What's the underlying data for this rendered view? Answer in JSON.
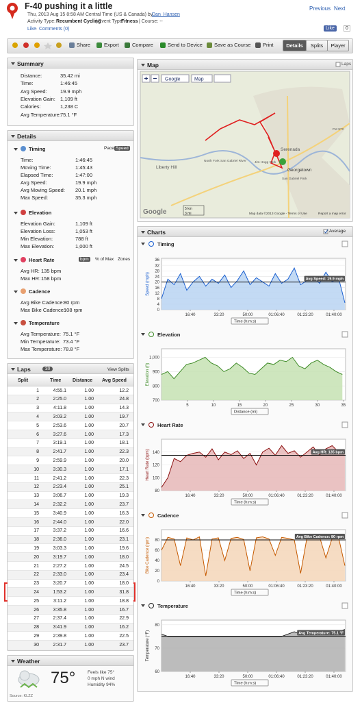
{
  "header": {
    "title": "F-40 pushing it a little",
    "datetime": "Thu, 2013 Aug 15 8:58 AM Central Time (US & Canada) by",
    "user": "Dan_Hansen",
    "activity_type_label": "Activity Type:",
    "activity_type": "Recumbent Cycling",
    "event_type_label": "| Event Type:",
    "event_type": "Fitness",
    "course": "| Course: --",
    "like": "Like",
    "sep": "·",
    "comments": "Comments (0)",
    "previous": "Previous",
    "next": "Next",
    "fb_like": "Like",
    "fb_count": "0"
  },
  "toolbar": {
    "actions": [
      "Share",
      "Export",
      "Compare",
      "Send to Device",
      "Save as Course",
      "Print"
    ],
    "tabs": [
      "Details",
      "Splits",
      "Player"
    ]
  },
  "summary": {
    "title": "Summary",
    "rows": [
      [
        "Distance:",
        "35.42 mi"
      ],
      [
        "Time:",
        "1:46:45"
      ],
      [
        "Avg Speed:",
        "19.9 mph"
      ],
      [
        "Elevation Gain:",
        "1,109 ft"
      ],
      [
        "Calories:",
        "1,238 C"
      ],
      [
        "Avg Temperature:",
        "75.1 °F"
      ]
    ]
  },
  "details": {
    "title": "Details",
    "sections": [
      {
        "title": "Timing",
        "toggles": [
          "Pace",
          "Speed"
        ],
        "rows": [
          [
            "Time:",
            "1:46:45"
          ],
          [
            "Moving Time:",
            "1:45:43"
          ],
          [
            "Elapsed Time:",
            "1:47:00"
          ],
          [
            "Avg Speed:",
            "19.9 mph"
          ],
          [
            "Avg Moving Speed:",
            "20.1 mph"
          ],
          [
            "Max Speed:",
            "35.3 mph"
          ]
        ]
      },
      {
        "title": "Elevation",
        "toggles": [],
        "rows": [
          [
            "Elevation Gain:",
            "1,109 ft"
          ],
          [
            "Elevation Loss:",
            "1,053 ft"
          ],
          [
            "Min Elevation:",
            "788 ft"
          ],
          [
            "Max Elevation:",
            "1,000 ft"
          ]
        ]
      },
      {
        "title": "Heart Rate",
        "toggles": [
          "bpm",
          "% of Max",
          "Zones"
        ],
        "rows": [
          [
            "Avg HR:",
            "135 bpm"
          ],
          [
            "Max HR:",
            "158 bpm"
          ]
        ]
      },
      {
        "title": "Cadence",
        "toggles": [],
        "rows": [
          [
            "Avg Bike Cadence:",
            "80 rpm"
          ],
          [
            "Max Bike Cadence:",
            "108 rpm"
          ]
        ]
      },
      {
        "title": "Temperature",
        "toggles": [],
        "rows": [
          [
            "Avg Temperature:",
            "75.1 °F"
          ],
          [
            "Min Temperature:",
            "73.4 °F"
          ],
          [
            "Max Temperature:",
            "78.8 °F"
          ]
        ]
      }
    ]
  },
  "laps": {
    "title": "Laps",
    "count": "30",
    "view_splits": "View Splits",
    "columns": [
      "Split",
      "Time",
      "Distance",
      "Avg Speed"
    ],
    "rows": [
      [
        "1",
        "4:55.1",
        "1.00",
        "12.2"
      ],
      [
        "2",
        "2:25.0",
        "1.00",
        "24.8"
      ],
      [
        "3",
        "4:11.8",
        "1.00",
        "14.3"
      ],
      [
        "4",
        "3:03.2",
        "1.00",
        "19.7"
      ],
      [
        "5",
        "2:53.6",
        "1.00",
        "20.7"
      ],
      [
        "6",
        "3:27.6",
        "1.00",
        "17.3"
      ],
      [
        "7",
        "3:19.1",
        "1.00",
        "18.1"
      ],
      [
        "8",
        "2:41.7",
        "1.00",
        "22.3"
      ],
      [
        "9",
        "2:59.9",
        "1.00",
        "20.0"
      ],
      [
        "10",
        "3:30.3",
        "1.00",
        "17.1"
      ],
      [
        "11",
        "2:41.2",
        "1.00",
        "22.3"
      ],
      [
        "12",
        "2:23.4",
        "1.00",
        "25.1"
      ],
      [
        "13",
        "3:06.7",
        "1.00",
        "19.3"
      ],
      [
        "14",
        "2:32.2",
        "1.00",
        "23.7"
      ],
      [
        "15",
        "3:40.9",
        "1.00",
        "16.3"
      ],
      [
        "16",
        "2:44.0",
        "1.00",
        "22.0"
      ],
      [
        "17",
        "3:37.2",
        "1.00",
        "16.6"
      ],
      [
        "18",
        "2:36.0",
        "1.00",
        "23.1"
      ],
      [
        "19",
        "3:03.3",
        "1.00",
        "19.6"
      ],
      [
        "20",
        "3:19.7",
        "1.00",
        "18.0"
      ],
      [
        "21",
        "2:27.2",
        "1.00",
        "24.5"
      ],
      [
        "22",
        "2:33.0",
        "1.00",
        "23.4"
      ],
      [
        "23",
        "3:20.7",
        "1.00",
        "18.0"
      ],
      [
        "24",
        "1:53.2",
        "1.00",
        "31.8"
      ],
      [
        "25",
        "3:11.2",
        "1.00",
        "18.8"
      ],
      [
        "26",
        "3:35.8",
        "1.00",
        "16.7"
      ],
      [
        "27",
        "2:37.4",
        "1.00",
        "22.9"
      ],
      [
        "28",
        "3:41.9",
        "1.00",
        "16.2"
      ],
      [
        "29",
        "2:39.8",
        "1.00",
        "22.5"
      ],
      [
        "30",
        "2:31.7",
        "1.00",
        "23.7"
      ]
    ]
  },
  "weather": {
    "title": "Weather",
    "temperature": "75°",
    "feels_like": "Feels like 75°",
    "wind": "0 mph N wind",
    "humidity": "Humidity 94%",
    "source": "Source: KLZZ"
  },
  "map": {
    "title": "Map",
    "laps": "Laps",
    "provider": "Google",
    "map_type": "Map",
    "labels": [
      "Serenada",
      "Georgetown",
      "Liberty Hill",
      "North Fork San Gabriel River",
      "Jim Hogg Park",
      "San Gabriel Park",
      "FM 972"
    ],
    "scale_km": "5 km",
    "scale_mi": "3 mi",
    "attribution": "Map data ©2013 Google - Terms of Use",
    "report": "Report a map error",
    "logo": "Google"
  },
  "charts": {
    "title": "Charts",
    "average": "Average"
  },
  "chart_data": [
    {
      "type": "line",
      "title": "Timing",
      "ylabel": "Speed (mph)",
      "xlabel": "Time (h:m:s)",
      "color": "#1a5fd0",
      "fill": "#b9d4f2",
      "x": [
        0,
        220,
        440,
        660,
        880,
        1100,
        1320,
        1540,
        1760,
        1980,
        2200,
        2420,
        2640,
        2860,
        3080,
        3300,
        3520,
        3740,
        3960,
        4180,
        4400,
        4620,
        4840,
        5060,
        5280,
        5500,
        5720,
        5940,
        6160,
        6380
      ],
      "values": [
        8,
        22,
        18,
        26,
        14,
        20,
        24,
        17,
        22,
        19,
        25,
        16,
        21,
        28,
        18,
        23,
        20,
        17,
        26,
        19,
        22,
        30,
        18,
        21,
        24,
        19,
        27,
        20,
        23,
        5
      ],
      "xlim": [
        0,
        6405
      ],
      "ylim": [
        0,
        37
      ],
      "yticks": [
        0,
        4,
        8,
        12,
        16,
        20,
        24,
        28,
        32,
        36
      ],
      "xticks": [
        {
          "value": 1000,
          "label": "16:40"
        },
        {
          "value": 2000,
          "label": "33:20"
        },
        {
          "value": 3000,
          "label": "50:00"
        },
        {
          "value": 4000,
          "label": "01:06:40"
        },
        {
          "value": 5000,
          "label": "01:23:20"
        },
        {
          "value": 6000,
          "label": "01:40:00"
        }
      ],
      "average": 19.9,
      "average_label": "Avg Speed: 19.9 mph"
    },
    {
      "type": "line",
      "title": "Elevation",
      "ylabel": "Elevation (ft)",
      "xlabel": "Distance (mi)",
      "color": "#3d8a26",
      "fill": "#c6e2b3",
      "x": [
        0,
        1.2,
        2.4,
        3.6,
        4.8,
        6,
        7.2,
        8.4,
        9.6,
        10.8,
        12,
        13.2,
        14.4,
        15.6,
        16.8,
        18,
        19.2,
        20.4,
        21.6,
        22.8,
        24,
        25.2,
        26.4,
        27.6,
        28.8,
        30,
        31.2,
        32.4,
        33.6,
        34.8
      ],
      "values": [
        880,
        900,
        850,
        900,
        950,
        960,
        980,
        1000,
        960,
        940,
        900,
        920,
        960,
        930,
        890,
        880,
        920,
        960,
        950,
        980,
        970,
        1000,
        940,
        920,
        960,
        980,
        950,
        930,
        900,
        880
      ],
      "xlim": [
        0,
        35.42
      ],
      "ylim": [
        700,
        1060
      ],
      "yticks": [
        700,
        800,
        900,
        {
          "value": 1000,
          "label": "1,000"
        }
      ],
      "xticks": [
        5,
        10,
        15,
        20,
        25,
        30,
        35
      ]
    },
    {
      "type": "line",
      "title": "Heart Rate",
      "ylabel": "Heart Rate (bpm)",
      "xlabel": "Time (h:m:s)",
      "color": "#8b1010",
      "fill": "#e6b7b7",
      "x": [
        0,
        220,
        440,
        660,
        880,
        1100,
        1320,
        1540,
        1760,
        1980,
        2200,
        2420,
        2640,
        2860,
        3080,
        3300,
        3520,
        3740,
        3960,
        4180,
        4400,
        4620,
        4840,
        5060,
        5280,
        5500,
        5720,
        5940,
        6160,
        6380
      ],
      "values": [
        85,
        100,
        130,
        125,
        135,
        138,
        140,
        132,
        145,
        128,
        140,
        136,
        142,
        130,
        138,
        120,
        140,
        146,
        135,
        150,
        138,
        142,
        132,
        140,
        148,
        135,
        145,
        150,
        140,
        142
      ],
      "xlim": [
        0,
        6405
      ],
      "ylim": [
        80,
        160
      ],
      "yticks": [
        80,
        100,
        120,
        140
      ],
      "xticks": [
        {
          "value": 1000,
          "label": "16:40"
        },
        {
          "value": 2000,
          "label": "33:20"
        },
        {
          "value": 3000,
          "label": "50:00"
        },
        {
          "value": 4000,
          "label": "01:06:40"
        },
        {
          "value": 5000,
          "label": "01:23:20"
        },
        {
          "value": 6000,
          "label": "01:40:00"
        }
      ],
      "average": 135,
      "average_label": "Avg HR: 135 bpm"
    },
    {
      "type": "line",
      "title": "Cadence",
      "ylabel": "Bike Cadence (rpm)",
      "xlabel": "Time (h:m:s)",
      "color": "#c55a00",
      "fill": "#f5d6b8",
      "x": [
        0,
        220,
        440,
        660,
        880,
        1100,
        1320,
        1540,
        1760,
        1980,
        2200,
        2420,
        2640,
        2860,
        3080,
        3300,
        3520,
        3740,
        3960,
        4180,
        4400,
        4620,
        4840,
        5060,
        5280,
        5500,
        5720,
        5940,
        6160,
        6380
      ],
      "values": [
        60,
        85,
        82,
        30,
        84,
        80,
        86,
        10,
        82,
        84,
        40,
        83,
        85,
        81,
        20,
        84,
        86,
        82,
        50,
        85,
        83,
        80,
        15,
        84,
        82,
        86,
        45,
        84,
        85,
        30
      ],
      "xlim": [
        0,
        6405
      ],
      "ylim": [
        0,
        100
      ],
      "yticks": [
        0,
        20,
        40,
        60,
        80
      ],
      "xticks": [
        {
          "value": 1000,
          "label": "16:40"
        },
        {
          "value": 2000,
          "label": "33:20"
        },
        {
          "value": 3000,
          "label": "50:00"
        },
        {
          "value": 4000,
          "label": "01:06:40"
        },
        {
          "value": 5000,
          "label": "01:23:20"
        },
        {
          "value": 6000,
          "label": "01:40:00"
        }
      ],
      "average": 80,
      "average_label": "Avg Bike Cadence: 80 rpm"
    },
    {
      "type": "line",
      "title": "Temperature",
      "ylabel": "Temperature (°F)",
      "xlabel": "Time (h:m:s)",
      "color": "#222222",
      "fill": "#b0b0b0",
      "x": [
        0,
        220,
        440,
        660,
        880,
        1100,
        1320,
        1540,
        1760,
        1980,
        2200,
        2420,
        2640,
        2860,
        3080,
        3300,
        3520,
        3740,
        3960,
        4180,
        4400,
        4620,
        4840,
        5060,
        5280,
        5500,
        5720,
        5940,
        6160,
        6380
      ],
      "values": [
        76,
        75,
        75,
        75,
        75,
        75,
        75,
        75,
        75,
        75,
        75,
        75,
        75,
        75,
        75,
        75,
        75,
        75,
        75,
        75,
        76,
        77,
        76,
        77,
        77,
        77,
        77,
        77,
        77,
        78
      ],
      "xlim": [
        0,
        6405
      ],
      "ylim": [
        60,
        82
      ],
      "yticks": [
        60,
        70,
        80
      ],
      "xticks": [
        {
          "value": 1000,
          "label": "16:40"
        },
        {
          "value": 2000,
          "label": "33:20"
        },
        {
          "value": 3000,
          "label": "50:00"
        },
        {
          "value": 4000,
          "label": "01:06:40"
        },
        {
          "value": 5000,
          "label": "01:23:20"
        },
        {
          "value": 6000,
          "label": "01:40:00"
        }
      ],
      "average": 75.1,
      "average_label": "Avg Temperature: 75.1 °F"
    }
  ]
}
